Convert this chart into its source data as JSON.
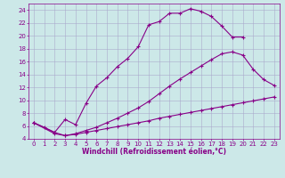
{
  "xlabel": "Windchill (Refroidissement éolien,°C)",
  "bg_color": "#cce8e8",
  "grid_color": "#aaaacc",
  "line_color": "#880088",
  "curve1_x": [
    0,
    1,
    2,
    3,
    4,
    5,
    6,
    7,
    8,
    9,
    10,
    11,
    12,
    13,
    14,
    15,
    16,
    17,
    18,
    19,
    20
  ],
  "curve1_y": [
    6.5,
    5.8,
    5.0,
    7.0,
    6.2,
    9.5,
    12.2,
    13.5,
    15.2,
    16.5,
    18.3,
    21.7,
    22.2,
    23.5,
    23.5,
    24.2,
    23.8,
    23.0,
    21.5,
    19.8,
    19.8
  ],
  "curve2_x": [
    0,
    2,
    3,
    4,
    5,
    6,
    7,
    8,
    9,
    10,
    11,
    12,
    13,
    14,
    15,
    16,
    17,
    18,
    19,
    20,
    21,
    22,
    23
  ],
  "curve2_y": [
    6.5,
    5.0,
    4.5,
    4.8,
    5.3,
    5.8,
    6.5,
    7.2,
    8.0,
    8.8,
    9.8,
    11.0,
    12.2,
    13.3,
    14.3,
    15.3,
    16.3,
    17.2,
    17.5,
    17.0,
    14.8,
    13.2,
    12.3
  ],
  "curve3_x": [
    0,
    2,
    3,
    4,
    5,
    6,
    7,
    8,
    9,
    10,
    11,
    12,
    13,
    14,
    15,
    16,
    17,
    18,
    19,
    20,
    21,
    22,
    23
  ],
  "curve3_y": [
    6.5,
    4.8,
    4.5,
    4.7,
    5.0,
    5.3,
    5.6,
    5.9,
    6.2,
    6.5,
    6.8,
    7.2,
    7.5,
    7.8,
    8.1,
    8.4,
    8.7,
    9.0,
    9.3,
    9.6,
    9.9,
    10.2,
    10.5
  ],
  "xlim": [
    -0.5,
    23.5
  ],
  "ylim": [
    4,
    25
  ],
  "yticks": [
    4,
    6,
    8,
    10,
    12,
    14,
    16,
    18,
    20,
    22,
    24
  ],
  "xticks": [
    0,
    1,
    2,
    3,
    4,
    5,
    6,
    7,
    8,
    9,
    10,
    11,
    12,
    13,
    14,
    15,
    16,
    17,
    18,
    19,
    20,
    21,
    22,
    23
  ],
  "marker": "+",
  "markersize": 3,
  "linewidth": 0.8,
  "xlabel_fontsize": 5.5,
  "tick_fontsize": 5
}
